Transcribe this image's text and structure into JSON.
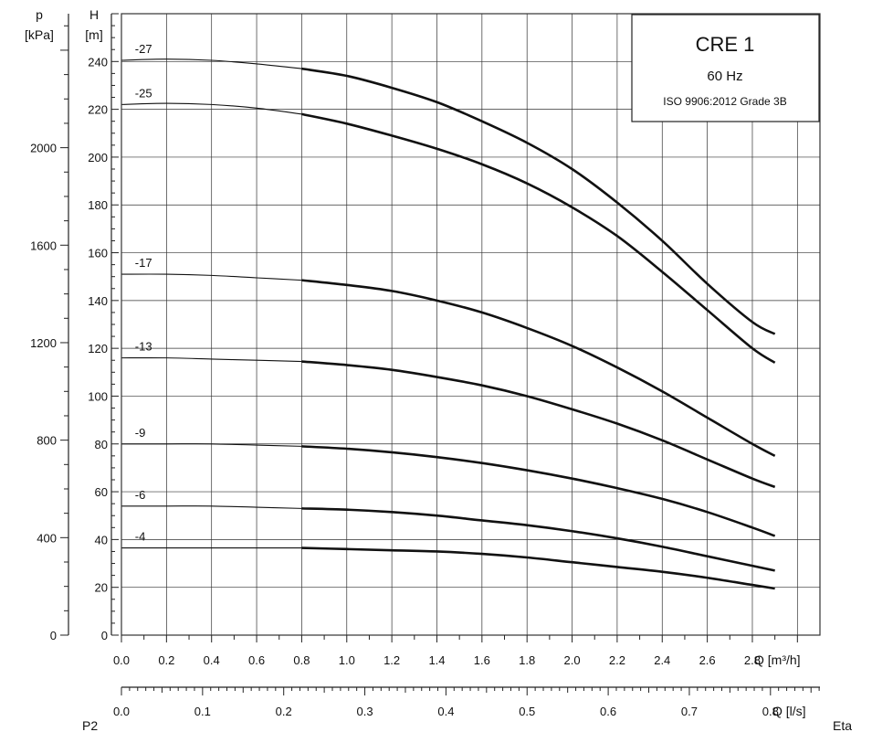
{
  "chart_data": {
    "type": "line",
    "title": "CRE 1",
    "subtitle": "60 Hz",
    "standard": "ISO 9906:2012 Grade 3B",
    "x_axis": {
      "label": "Q [m³/h]",
      "range": [
        0,
        3.1
      ],
      "ticks": [
        "0.0",
        "0.2",
        "0.4",
        "0.6",
        "0.8",
        "1.0",
        "1.2",
        "1.4",
        "1.6",
        "1.8",
        "2.0",
        "2.2",
        "2.4",
        "2.6",
        "2.8"
      ]
    },
    "x_axis_secondary": {
      "label": "Q [l/s]",
      "range": [
        0,
        0.861
      ],
      "ticks": [
        "0.0",
        "0.1",
        "0.2",
        "0.3",
        "0.4",
        "0.5",
        "0.6",
        "0.7",
        "0.8"
      ]
    },
    "y_axis": {
      "label_name": "H",
      "label_unit": "[m]",
      "range": [
        0,
        260
      ],
      "ticks": [
        "0",
        "20",
        "40",
        "60",
        "80",
        "100",
        "120",
        "140",
        "160",
        "180",
        "200",
        "220",
        "240"
      ]
    },
    "y_axis_secondary": {
      "label_name": "p",
      "label_unit": "[kPa]",
      "ticks": [
        "0",
        "400",
        "800",
        "1200",
        "1600",
        "2000"
      ]
    },
    "extra_labels": {
      "p2": "P2",
      "eta": "Eta"
    },
    "grid": true,
    "bold_from_q": 0.8,
    "series": [
      {
        "name": "-27",
        "x": [
          0,
          0.2,
          0.4,
          0.6,
          0.8,
          1.0,
          1.2,
          1.4,
          1.6,
          1.8,
          2.0,
          2.2,
          2.4,
          2.6,
          2.8,
          2.9
        ],
        "y": [
          240.5,
          241,
          240.5,
          239,
          237,
          234,
          229,
          223,
          215,
          206,
          195,
          181,
          165,
          147,
          131,
          126
        ]
      },
      {
        "name": "-25",
        "x": [
          0,
          0.2,
          0.4,
          0.6,
          0.8,
          1.0,
          1.2,
          1.4,
          1.6,
          1.8,
          2.0,
          2.2,
          2.4,
          2.6,
          2.8,
          2.9
        ],
        "y": [
          222,
          222.5,
          222,
          220.5,
          218,
          214,
          209,
          203.5,
          197,
          189,
          179,
          167,
          152,
          136,
          120,
          114
        ]
      },
      {
        "name": "-17",
        "x": [
          0,
          0.2,
          0.4,
          0.6,
          0.8,
          1.0,
          1.2,
          1.4,
          1.6,
          1.8,
          2.0,
          2.2,
          2.4,
          2.6,
          2.8,
          2.9
        ],
        "y": [
          151,
          151,
          150.5,
          149.5,
          148.5,
          146.5,
          144,
          140,
          135,
          128.5,
          121,
          112,
          102,
          91,
          80,
          75
        ]
      },
      {
        "name": "-13",
        "x": [
          0,
          0.2,
          0.4,
          0.6,
          0.8,
          1.0,
          1.2,
          1.4,
          1.6,
          1.8,
          2.0,
          2.2,
          2.4,
          2.6,
          2.8,
          2.9
        ],
        "y": [
          116,
          116,
          115.5,
          115,
          114.5,
          113,
          111,
          108,
          104.5,
          100,
          94.5,
          88.5,
          81.5,
          73.5,
          65.5,
          62
        ]
      },
      {
        "name": "-9",
        "x": [
          0,
          0.2,
          0.4,
          0.6,
          0.8,
          1.0,
          1.2,
          1.4,
          1.6,
          1.8,
          2.0,
          2.2,
          2.4,
          2.6,
          2.8,
          2.9
        ],
        "y": [
          80,
          80,
          80,
          79.5,
          79,
          78,
          76.5,
          74.5,
          72,
          69,
          65.5,
          61.5,
          57,
          51.5,
          45,
          41.5
        ]
      },
      {
        "name": "-6",
        "x": [
          0,
          0.2,
          0.4,
          0.6,
          0.8,
          1.0,
          1.2,
          1.4,
          1.6,
          1.8,
          2.0,
          2.2,
          2.4,
          2.6,
          2.8,
          2.9
        ],
        "y": [
          54,
          54,
          54,
          53.5,
          53,
          52.5,
          51.5,
          50,
          48,
          46,
          43.5,
          40.5,
          37,
          33,
          29,
          27
        ]
      },
      {
        "name": "-4",
        "x": [
          0,
          0.2,
          0.4,
          0.6,
          0.8,
          1.0,
          1.2,
          1.4,
          1.6,
          1.8,
          2.0,
          2.2,
          2.4,
          2.6,
          2.8,
          2.9
        ],
        "y": [
          36.5,
          36.5,
          36.5,
          36.5,
          36.5,
          36,
          35.5,
          35,
          34,
          32.5,
          30.5,
          28.5,
          26.5,
          24,
          21,
          19.5
        ]
      }
    ]
  }
}
